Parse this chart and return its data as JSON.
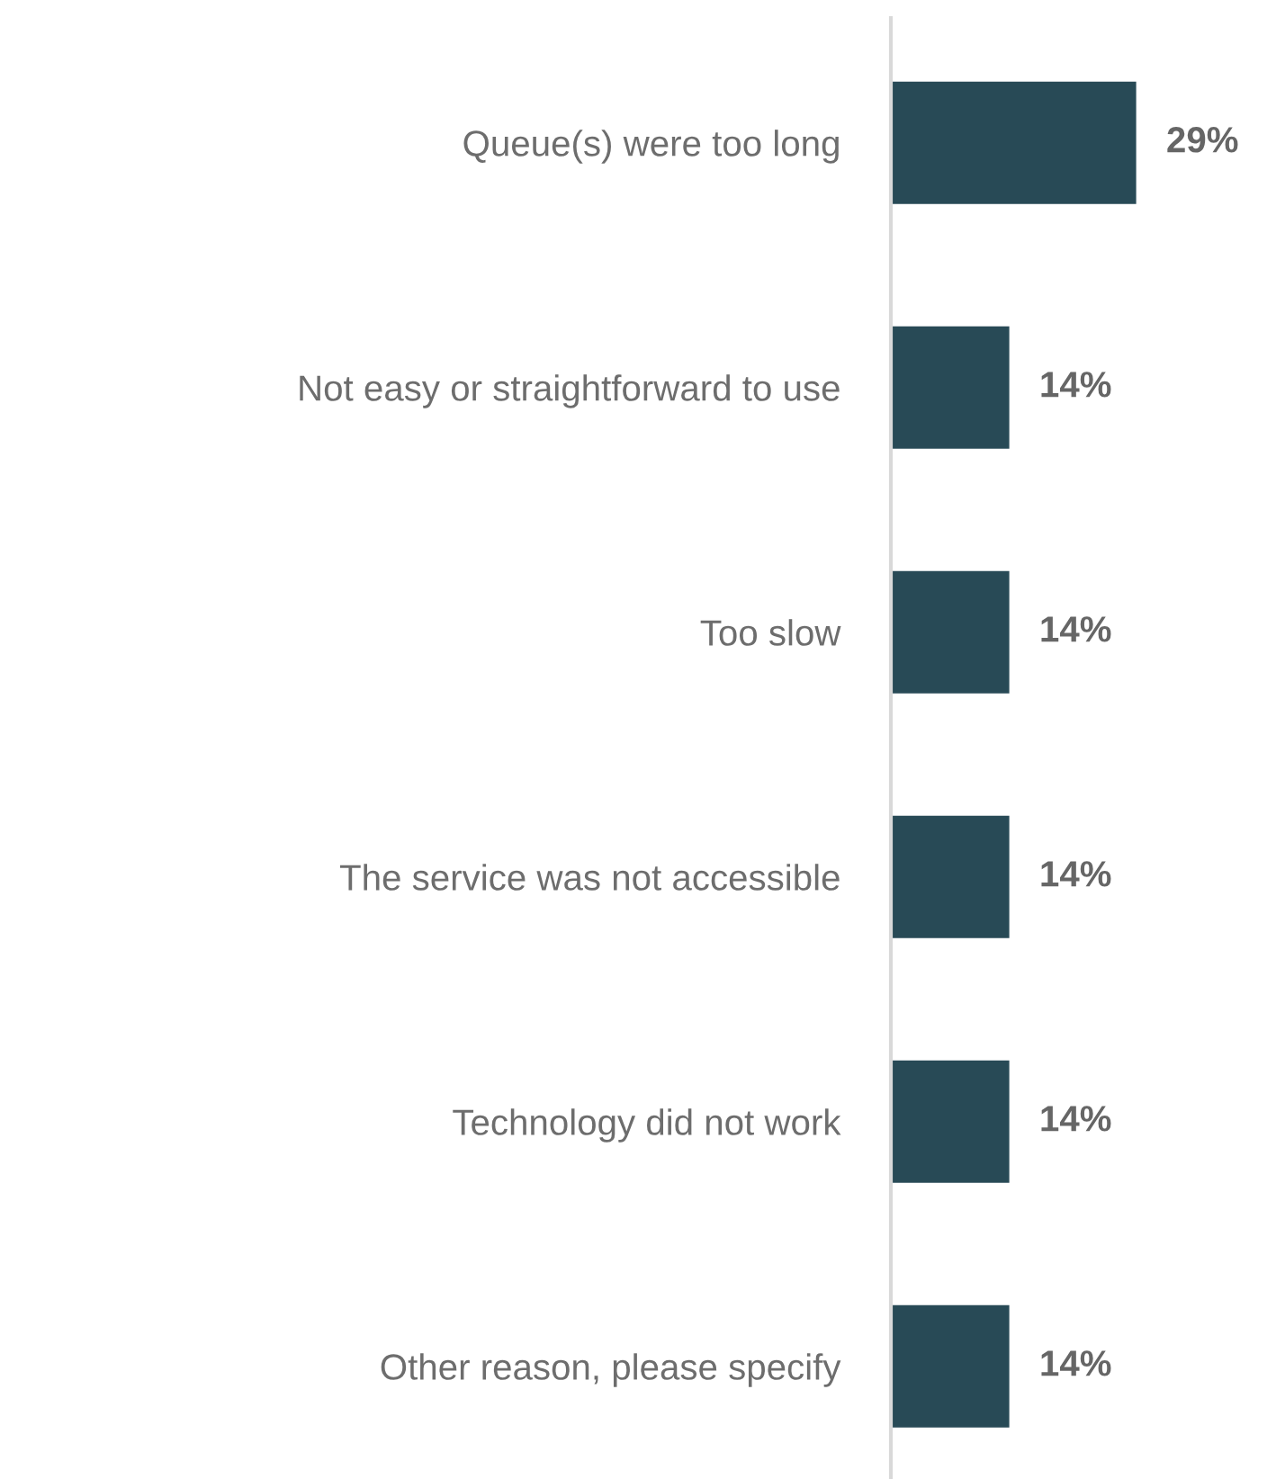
{
  "chart_data": {
    "type": "bar",
    "orientation": "horizontal",
    "categories": [
      "Queue(s) were too long",
      "Not easy or straightforward to use",
      "Too slow",
      "The service was not accessible",
      "Technology did not work",
      "Other reason, please specify"
    ],
    "values": [
      29,
      14,
      14,
      14,
      14,
      14
    ],
    "value_labels": [
      "29%",
      "14%",
      "14%",
      "14%",
      "14%",
      "14%"
    ],
    "color": "#284a56",
    "grid": false,
    "legend": false
  }
}
